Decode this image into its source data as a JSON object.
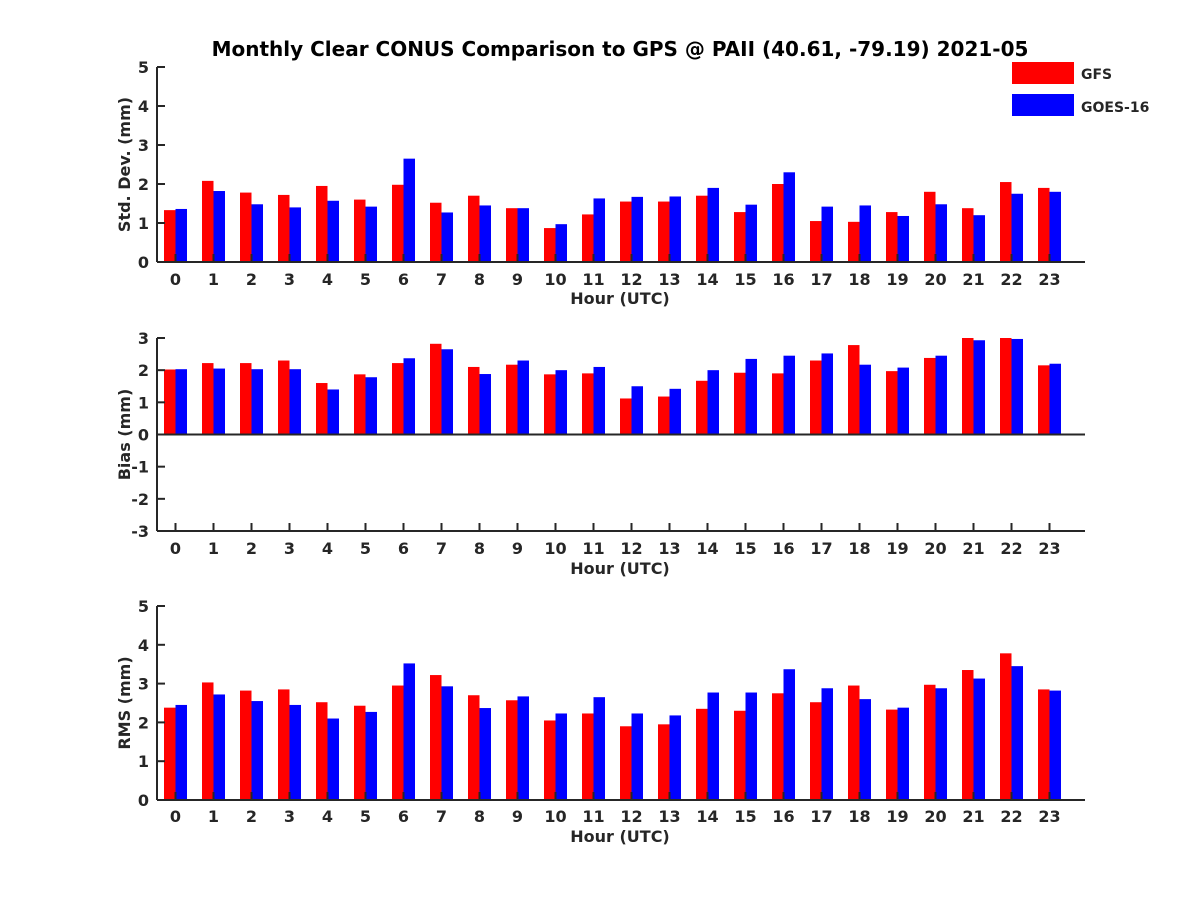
{
  "figure": {
    "title": "Monthly Clear CONUS Comparison to GPS @ PAII (40.61, -79.19) 2021-05",
    "legend": [
      {
        "label": "GFS",
        "color": "#ff0000"
      },
      {
        "label": "GOES-16",
        "color": "#0000ff"
      }
    ],
    "legend_placement": "top-right"
  },
  "chart_data": [
    {
      "type": "bar",
      "xlabel": "Hour (UTC)",
      "ylabel": "Std. Dev. (mm)",
      "ylim": [
        0,
        5
      ],
      "yticks": [
        "0",
        "1",
        "2",
        "3",
        "4",
        "5"
      ],
      "categories": [
        "0",
        "1",
        "2",
        "3",
        "4",
        "5",
        "6",
        "7",
        "8",
        "9",
        "10",
        "11",
        "12",
        "13",
        "14",
        "15",
        "16",
        "17",
        "18",
        "19",
        "20",
        "21",
        "22",
        "23"
      ],
      "series": [
        {
          "name": "GFS",
          "color": "#ff0000",
          "values": [
            1.33,
            2.08,
            1.78,
            1.72,
            1.95,
            1.6,
            1.98,
            1.52,
            1.7,
            1.38,
            0.87,
            1.22,
            1.55,
            1.55,
            1.7,
            1.28,
            2.0,
            1.05,
            1.03,
            1.28,
            1.8,
            1.38,
            2.05,
            1.9
          ]
        },
        {
          "name": "GOES-16",
          "color": "#0000ff",
          "values": [
            1.36,
            1.82,
            1.48,
            1.4,
            1.57,
            1.42,
            2.65,
            1.27,
            1.45,
            1.38,
            0.97,
            1.63,
            1.67,
            1.68,
            1.9,
            1.47,
            2.3,
            1.42,
            1.45,
            1.18,
            1.48,
            1.2,
            1.75,
            1.8
          ]
        }
      ],
      "grid": false
    },
    {
      "type": "bar",
      "xlabel": "Hour (UTC)",
      "ylabel": "Bias (mm)",
      "ylim": [
        -3,
        3
      ],
      "yticks": [
        "-3",
        "-2",
        "-1",
        "0",
        "1",
        "2",
        "3"
      ],
      "categories": [
        "0",
        "1",
        "2",
        "3",
        "4",
        "5",
        "6",
        "7",
        "8",
        "9",
        "10",
        "11",
        "12",
        "13",
        "14",
        "15",
        "16",
        "17",
        "18",
        "19",
        "20",
        "21",
        "22",
        "23"
      ],
      "series": [
        {
          "name": "GFS",
          "color": "#ff0000",
          "values": [
            2.02,
            2.22,
            2.22,
            2.3,
            1.6,
            1.87,
            2.22,
            2.82,
            2.1,
            2.17,
            1.87,
            1.9,
            1.12,
            1.18,
            1.67,
            1.92,
            1.9,
            2.3,
            2.78,
            1.97,
            2.38,
            3.0,
            3.0,
            2.15
          ]
        },
        {
          "name": "GOES-16",
          "color": "#0000ff",
          "values": [
            2.03,
            2.05,
            2.03,
            2.03,
            1.4,
            1.78,
            2.37,
            2.65,
            1.88,
            2.3,
            2.0,
            2.1,
            1.5,
            1.42,
            2.0,
            2.35,
            2.45,
            2.52,
            2.17,
            2.08,
            2.45,
            2.93,
            2.97,
            2.2
          ]
        }
      ],
      "grid": false
    },
    {
      "type": "bar",
      "xlabel": "Hour (UTC)",
      "ylabel": "RMS (mm)",
      "ylim": [
        0,
        5
      ],
      "yticks": [
        "0",
        "1",
        "2",
        "3",
        "4",
        "5"
      ],
      "categories": [
        "0",
        "1",
        "2",
        "3",
        "4",
        "5",
        "6",
        "7",
        "8",
        "9",
        "10",
        "11",
        "12",
        "13",
        "14",
        "15",
        "16",
        "17",
        "18",
        "19",
        "20",
        "21",
        "22",
        "23"
      ],
      "series": [
        {
          "name": "GFS",
          "color": "#ff0000",
          "values": [
            2.38,
            3.03,
            2.82,
            2.85,
            2.52,
            2.43,
            2.95,
            3.22,
            2.7,
            2.57,
            2.05,
            2.23,
            1.9,
            1.95,
            2.35,
            2.3,
            2.75,
            2.52,
            2.95,
            2.33,
            2.97,
            3.35,
            3.78,
            2.85
          ]
        },
        {
          "name": "GOES-16",
          "color": "#0000ff",
          "values": [
            2.45,
            2.72,
            2.55,
            2.45,
            2.1,
            2.27,
            3.52,
            2.93,
            2.37,
            2.67,
            2.23,
            2.65,
            2.23,
            2.18,
            2.77,
            2.77,
            3.37,
            2.88,
            2.6,
            2.38,
            2.88,
            3.13,
            3.45,
            2.82
          ]
        }
      ],
      "grid": false
    }
  ]
}
